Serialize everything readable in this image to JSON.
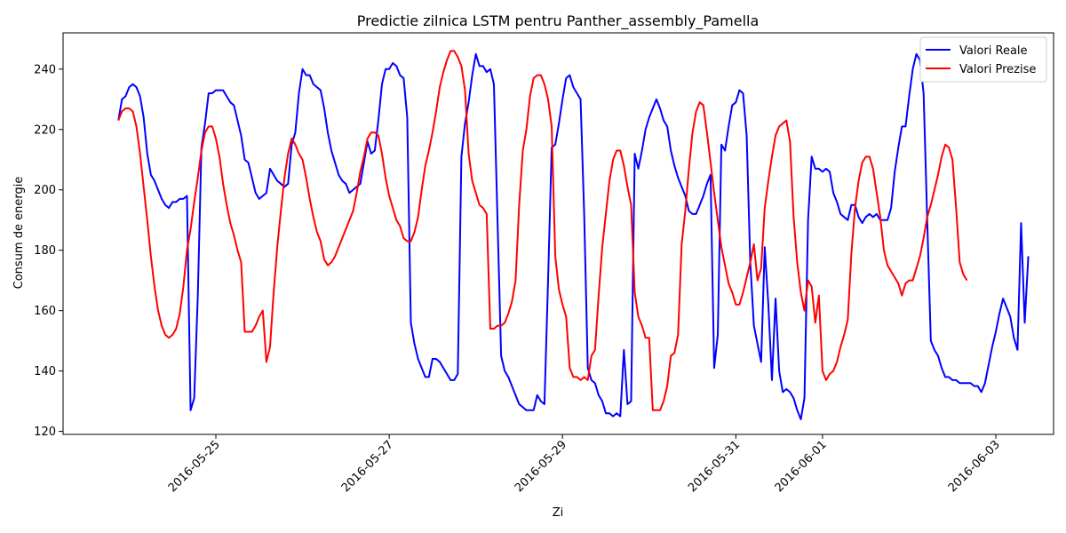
{
  "chart_data": {
    "type": "line",
    "title": "Predictie zilnica LSTM pentru Panther_assembly_Pamella",
    "xlabel": "Zi",
    "ylabel": "Consum de energie",
    "x_start": "2016-05-23T21:00",
    "x_step_hours": 1,
    "x_ticks": [
      "2016-05-25",
      "2016-05-27",
      "2016-05-29",
      "2016-05-31",
      "2016-06-01",
      "2016-06-03"
    ],
    "y_ticks": [
      120,
      140,
      160,
      180,
      200,
      220,
      240
    ],
    "ylim": [
      119,
      252
    ],
    "grid": false,
    "legend": "top-right",
    "series": [
      {
        "name": "Valori Reale",
        "color": "#0000ff",
        "values": [
          223,
          230,
          231,
          234,
          235,
          234,
          231,
          224,
          212,
          205,
          203,
          200,
          197,
          195,
          194,
          196,
          196,
          197,
          197,
          198,
          127,
          131,
          165,
          214,
          222,
          232,
          232,
          233,
          233,
          233,
          231,
          229,
          228,
          223,
          218,
          210,
          209,
          204,
          199,
          197,
          198,
          199,
          207,
          205,
          203,
          202,
          201,
          202,
          215,
          219,
          232,
          240,
          238,
          238,
          235,
          234,
          233,
          227,
          219,
          213,
          209,
          205,
          203,
          202,
          199,
          200,
          201,
          202,
          209,
          216,
          212,
          213,
          223,
          235,
          240,
          240,
          242,
          241,
          238,
          237,
          224,
          156,
          149,
          144,
          141,
          138,
          138,
          144,
          144,
          143,
          141,
          139,
          137,
          137,
          139,
          211,
          222,
          229,
          238,
          245,
          241,
          241,
          239,
          240,
          235,
          190,
          145,
          140,
          138,
          135,
          132,
          129,
          128,
          127,
          127,
          127,
          132,
          130,
          129,
          170,
          214,
          215,
          222,
          230,
          237,
          238,
          234,
          232,
          230,
          192,
          141,
          137,
          136,
          132,
          130,
          126,
          126,
          125,
          126,
          125,
          147,
          129,
          130,
          212,
          207,
          213,
          220,
          224,
          227,
          230,
          227,
          223,
          221,
          213,
          208,
          204,
          201,
          198,
          193,
          192,
          192,
          195,
          198,
          202,
          205,
          141,
          152,
          215,
          213,
          221,
          228,
          229,
          233,
          232,
          218,
          176,
          155,
          149,
          143,
          181,
          162,
          137,
          164,
          140,
          133,
          134,
          133,
          131,
          127,
          124,
          131,
          190,
          211,
          207,
          207,
          206,
          207,
          206,
          199,
          196,
          192,
          191,
          190,
          195,
          195,
          191,
          189,
          191,
          192,
          191,
          192,
          190,
          190,
          190,
          194,
          206,
          214,
          221,
          221,
          231,
          240,
          245,
          243,
          232,
          190,
          150,
          147,
          145,
          141,
          138,
          138,
          137,
          137,
          136,
          136,
          136,
          136,
          135,
          135,
          133,
          136,
          142,
          148,
          153,
          159,
          164,
          161,
          158,
          151,
          147,
          189,
          156,
          178
        ]
      },
      {
        "name": "Valori Prezise",
        "color": "#ff0000",
        "values": [
          223,
          226,
          227,
          227,
          226,
          221,
          212,
          201,
          190,
          178,
          168,
          160,
          155,
          152,
          151,
          152,
          154,
          159,
          168,
          180,
          187,
          196,
          204,
          213,
          219,
          221,
          221,
          217,
          211,
          202,
          195,
          189,
          185,
          180,
          176,
          153,
          153,
          153,
          155,
          158,
          160,
          143,
          148,
          166,
          181,
          193,
          204,
          212,
          217,
          215,
          212,
          210,
          204,
          197,
          191,
          186,
          183,
          177,
          175,
          176,
          178,
          181,
          184,
          187,
          190,
          193,
          199,
          206,
          211,
          217,
          219,
          219,
          218,
          212,
          204,
          198,
          194,
          190,
          188,
          184,
          183,
          183,
          186,
          191,
          200,
          208,
          213,
          219,
          226,
          234,
          239,
          243,
          246,
          246,
          244,
          241,
          233,
          212,
          203,
          199,
          195,
          194,
          192,
          154,
          154,
          155,
          155,
          156,
          159,
          163,
          170,
          195,
          213,
          220,
          231,
          237,
          238,
          238,
          235,
          230,
          221,
          178,
          167,
          162,
          158,
          141,
          138,
          138,
          137,
          138,
          137,
          145,
          147,
          165,
          181,
          192,
          203,
          210,
          213,
          213,
          208,
          201,
          195,
          166,
          158,
          155,
          151,
          151,
          127,
          127,
          127,
          130,
          135,
          145,
          146,
          152,
          182,
          193,
          207,
          219,
          226,
          229,
          228,
          219,
          209,
          199,
          190,
          181,
          175,
          169,
          166,
          162,
          162,
          166,
          171,
          176,
          182,
          170,
          174,
          194,
          203,
          211,
          218,
          221,
          222,
          223,
          216,
          191,
          176,
          166,
          160,
          170,
          168,
          156,
          165,
          140,
          137,
          139,
          140,
          143,
          148,
          152,
          157,
          179,
          194,
          203,
          209,
          211,
          211,
          207,
          199,
          191,
          180,
          175,
          173,
          171,
          169,
          165,
          169,
          170,
          170,
          174,
          178,
          184,
          191,
          195,
          200,
          205,
          211,
          215,
          214,
          210,
          194,
          176,
          172,
          170
        ]
      }
    ]
  }
}
